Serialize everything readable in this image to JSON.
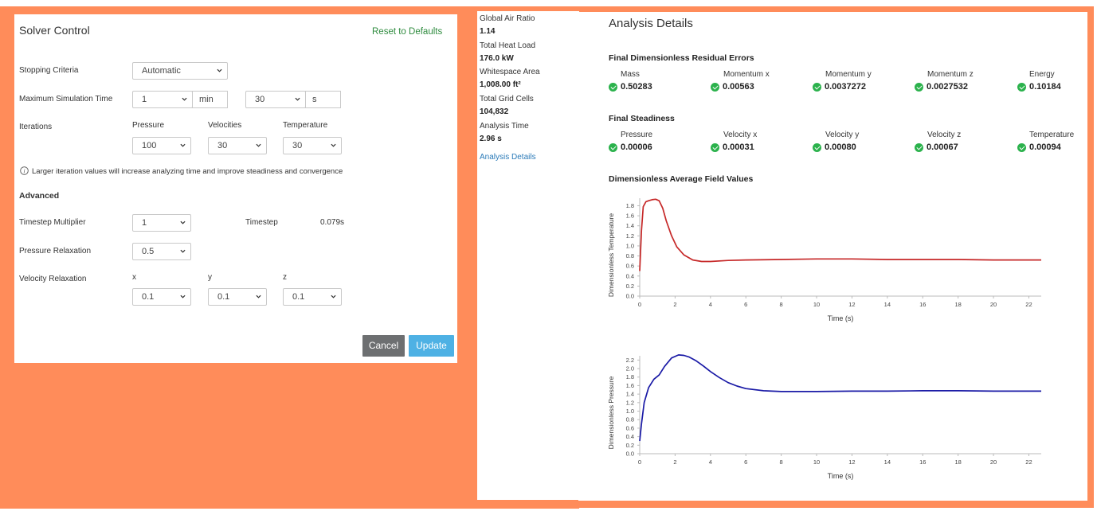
{
  "solver": {
    "title": "Solver Control",
    "reset_label": "Reset to Defaults",
    "stopping_criteria_label": "Stopping Criteria",
    "stopping_criteria_value": "Automatic",
    "max_sim_time_label": "Maximum Simulation Time",
    "min_value": "1",
    "min_unit": "min",
    "sec_value": "30",
    "sec_unit": "s",
    "iterations_label": "Iterations",
    "pressure_header": "Pressure",
    "velocities_header": "Velocities",
    "temperature_header": "Temperature",
    "pressure_iter": "100",
    "velocities_iter": "30",
    "temperature_iter": "30",
    "info_text": "Larger iteration values will increase analyzing time and improve steadiness and convergence",
    "advanced_label": "Advanced",
    "timestep_multiplier_label": "Timestep Multiplier",
    "timestep_multiplier_value": "1",
    "timestep_label": "Timestep",
    "timestep_value": "0.079s",
    "pressure_relax_label": "Pressure Relaxation",
    "pressure_relax_value": "0.5",
    "velocity_relax_label": "Velocity Relaxation",
    "x_label": "x",
    "y_label": "y",
    "z_label": "z",
    "vx_value": "0.1",
    "vy_value": "0.1",
    "vz_value": "0.1",
    "cancel_label": "Cancel",
    "update_label": "Update",
    "accent_green": "#2e8b3e",
    "cancel_color": "#6d6f71",
    "update_color": "#4eb1e4"
  },
  "summary": {
    "items": [
      {
        "label": "Global Air Ratio",
        "value": "1.14"
      },
      {
        "label": "Total Heat Load",
        "value": "176.0 kW"
      },
      {
        "label": "Whitespace Area",
        "value": "1,008.00 ft²"
      },
      {
        "label": "Total Grid Cells",
        "value": "104,832"
      },
      {
        "label": "Analysis Time",
        "value": "2.96 s"
      }
    ],
    "details_link": "Analysis Details",
    "link_color": "#2a7ab8"
  },
  "analysis": {
    "title": "Analysis Details",
    "residual_title": "Final Dimensionless Residual Errors",
    "residuals": [
      {
        "name": "Mass",
        "value": "0.50283"
      },
      {
        "name": "Momentum x",
        "value": "0.00563"
      },
      {
        "name": "Momentum y",
        "value": "0.0037272"
      },
      {
        "name": "Momentum z",
        "value": "0.0027532"
      },
      {
        "name": "Energy",
        "value": "0.10184"
      }
    ],
    "steadiness_title": "Final Steadiness",
    "steadiness": [
      {
        "name": "Pressure",
        "value": "0.00006"
      },
      {
        "name": "Velocity x",
        "value": "0.00031"
      },
      {
        "name": "Velocity y",
        "value": "0.00080"
      },
      {
        "name": "Velocity z",
        "value": "0.00067"
      },
      {
        "name": "Temperature",
        "value": "0.00094"
      }
    ],
    "field_title": "Dimensionless Average Field Values",
    "check_color": "#2bb24c"
  },
  "chart_data": [
    {
      "type": "line",
      "xlabel": "Time (s)",
      "ylabel": "Dimensionless Temperature",
      "xlim": [
        0,
        22.7
      ],
      "ylim": [
        0,
        1.95
      ],
      "xticks": [
        0,
        2,
        4,
        6,
        8,
        10,
        12,
        14,
        16,
        18,
        20,
        22
      ],
      "yticks": [
        0.0,
        0.2,
        0.4,
        0.6,
        0.8,
        1.0,
        1.2,
        1.4,
        1.6,
        1.8
      ],
      "color": "#c62828",
      "x": [
        0.0,
        0.1,
        0.2,
        0.35,
        0.5,
        0.7,
        0.9,
        1.1,
        1.3,
        1.5,
        1.8,
        2.1,
        2.5,
        3.0,
        3.5,
        4.0,
        5.0,
        6.0,
        8.0,
        10.0,
        12.0,
        14.0,
        16.0,
        18.0,
        20.0,
        22.7
      ],
      "y": [
        0.5,
        1.3,
        1.78,
        1.88,
        1.9,
        1.92,
        1.93,
        1.9,
        1.75,
        1.5,
        1.2,
        0.98,
        0.82,
        0.72,
        0.69,
        0.69,
        0.71,
        0.72,
        0.73,
        0.74,
        0.74,
        0.73,
        0.73,
        0.73,
        0.72,
        0.72
      ]
    },
    {
      "type": "line",
      "xlabel": "Time (s)",
      "ylabel": "Dimensionless Pressure",
      "xlim": [
        0,
        22.7
      ],
      "ylim": [
        0,
        2.3
      ],
      "xticks": [
        0,
        2,
        4,
        6,
        8,
        10,
        12,
        14,
        16,
        18,
        20,
        22
      ],
      "yticks": [
        0.0,
        0.2,
        0.4,
        0.6,
        0.8,
        1.0,
        1.2,
        1.4,
        1.6,
        1.8,
        2.0,
        2.2
      ],
      "color": "#1a1aa6",
      "x": [
        0.0,
        0.1,
        0.25,
        0.5,
        0.8,
        1.1,
        1.4,
        1.8,
        2.2,
        2.5,
        2.8,
        3.2,
        3.6,
        4.0,
        4.5,
        5.0,
        5.5,
        6.0,
        7.0,
        8.0,
        9.0,
        10.0,
        12.0,
        14.0,
        16.0,
        18.0,
        20.0,
        22.7
      ],
      "y": [
        0.3,
        0.7,
        1.2,
        1.55,
        1.75,
        1.85,
        2.05,
        2.25,
        2.32,
        2.31,
        2.27,
        2.18,
        2.06,
        1.93,
        1.79,
        1.67,
        1.59,
        1.53,
        1.48,
        1.46,
        1.46,
        1.46,
        1.47,
        1.47,
        1.48,
        1.48,
        1.47,
        1.47
      ]
    }
  ]
}
